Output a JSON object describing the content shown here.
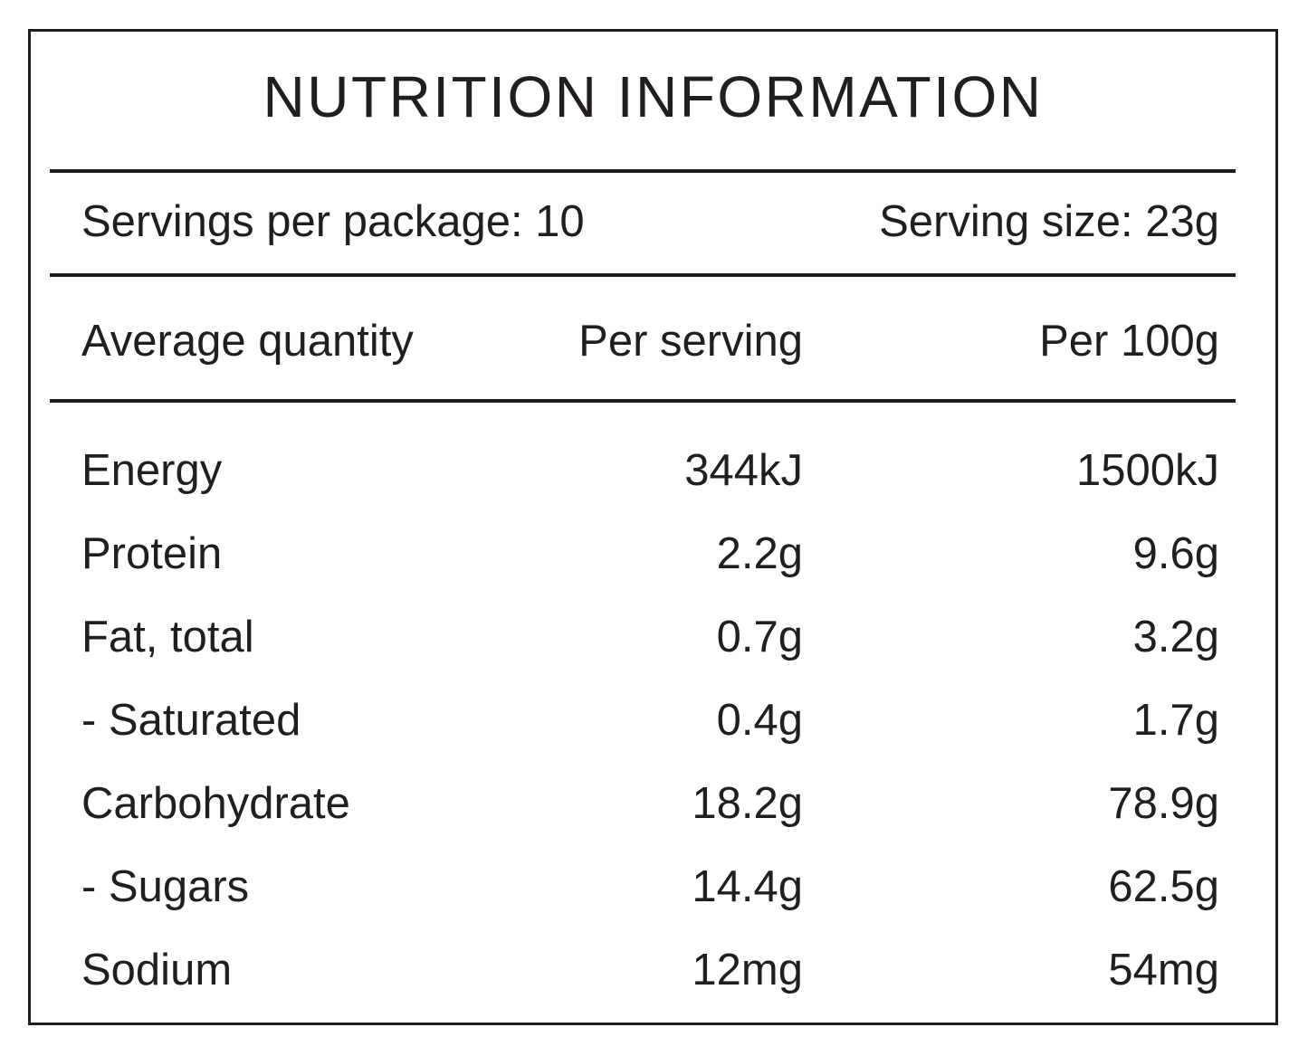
{
  "title": "NUTRITION INFORMATION",
  "serving_info": {
    "servings_per_package": "Servings per package: 10",
    "serving_size": "Serving size: 23g"
  },
  "table": {
    "headers": {
      "label": "Average quantity",
      "per_serving": "Per serving",
      "per_100g": "Per 100g"
    },
    "rows": [
      {
        "label": "Energy",
        "per_serving": "344kJ",
        "per_100g": "1500kJ"
      },
      {
        "label": "Protein",
        "per_serving": "2.2g",
        "per_100g": "9.6g"
      },
      {
        "label": "Fat, total",
        "per_serving": "0.7g",
        "per_100g": "3.2g"
      },
      {
        "label": "- Saturated",
        "per_serving": "0.4g",
        "per_100g": "1.7g"
      },
      {
        "label": "Carbohydrate",
        "per_serving": "18.2g",
        "per_100g": "78.9g"
      },
      {
        "label": "- Sugars",
        "per_serving": "14.4g",
        "per_100g": "62.5g"
      },
      {
        "label": "Sodium",
        "per_serving": "12mg",
        "per_100g": "54mg"
      }
    ]
  },
  "colors": {
    "text": "#221e1f",
    "line": "#1d1d1b",
    "background": "#ffffff"
  }
}
